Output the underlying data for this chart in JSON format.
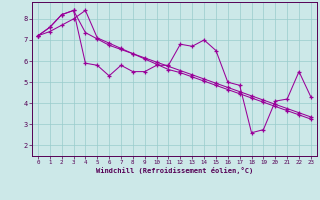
{
  "xlabel": "Windchill (Refroidissement éolien,°C)",
  "xlim": [
    -0.5,
    23.5
  ],
  "ylim": [
    1.5,
    8.8
  ],
  "yticks": [
    2,
    3,
    4,
    5,
    6,
    7,
    8
  ],
  "xticks": [
    0,
    1,
    2,
    3,
    4,
    5,
    6,
    7,
    8,
    9,
    10,
    11,
    12,
    13,
    14,
    15,
    16,
    17,
    18,
    19,
    20,
    21,
    22,
    23
  ],
  "bg_color": "#cce8e8",
  "line_color": "#990099",
  "grid_color": "#99cccc",
  "line1_x": [
    0,
    1,
    2,
    3,
    4,
    5,
    6,
    7,
    8,
    9,
    10,
    11,
    12,
    13,
    14,
    15,
    16,
    17,
    18,
    19,
    20,
    21,
    22,
    23
  ],
  "line1_y": [
    7.2,
    7.6,
    8.2,
    8.4,
    5.9,
    5.8,
    5.3,
    5.8,
    5.5,
    5.5,
    5.8,
    5.8,
    6.8,
    6.7,
    7.0,
    6.5,
    5.0,
    4.85,
    2.6,
    2.75,
    4.1,
    4.2,
    5.5,
    4.3
  ],
  "line2_x": [
    0,
    1,
    2,
    3,
    4,
    5,
    6,
    7,
    8,
    9,
    10,
    11,
    12,
    13,
    14,
    15,
    16,
    17,
    18,
    19,
    20,
    21,
    22,
    23
  ],
  "line2_y": [
    7.2,
    7.6,
    8.2,
    8.4,
    7.35,
    7.05,
    6.75,
    6.55,
    6.35,
    6.15,
    5.95,
    5.75,
    5.55,
    5.35,
    5.15,
    4.95,
    4.75,
    4.55,
    4.35,
    4.15,
    3.95,
    3.75,
    3.55,
    3.35
  ],
  "line3_x": [
    0,
    1,
    2,
    3,
    4,
    5,
    6,
    7,
    8,
    9,
    10,
    11,
    12,
    13,
    14,
    15,
    16,
    17,
    18,
    19,
    20,
    21,
    22,
    23
  ],
  "line3_y": [
    7.2,
    7.4,
    7.7,
    8.0,
    8.4,
    7.1,
    6.85,
    6.6,
    6.35,
    6.1,
    5.85,
    5.6,
    5.45,
    5.25,
    5.05,
    4.85,
    4.65,
    4.45,
    4.25,
    4.05,
    3.85,
    3.65,
    3.45,
    3.25
  ]
}
